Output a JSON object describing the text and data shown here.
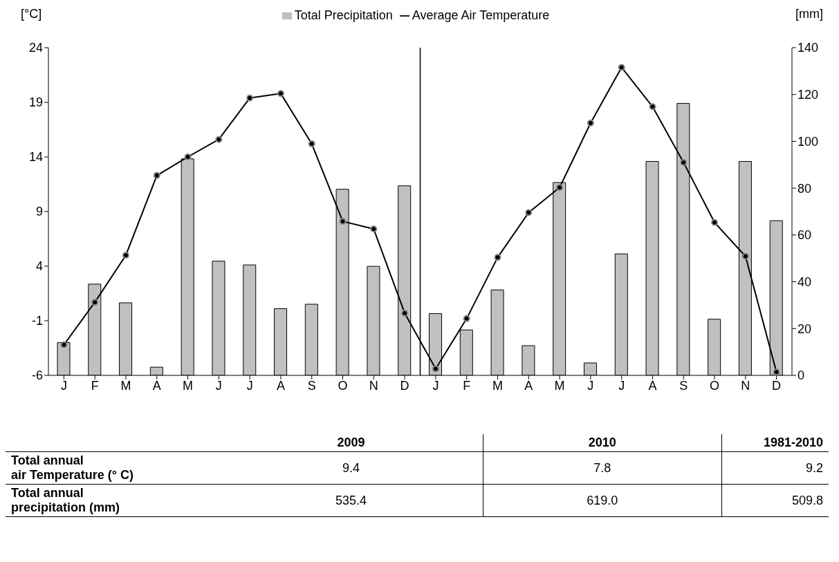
{
  "chart_data": {
    "type": "bar",
    "ylabel": "[°C]",
    "y2label": "[mm]",
    "categories": [
      "J",
      "F",
      "M",
      "A",
      "M",
      "J",
      "J",
      "A",
      "S",
      "O",
      "N",
      "D",
      "J",
      "F",
      "M",
      "A",
      "M",
      "J",
      "J",
      "A",
      "S",
      "O",
      "N",
      "D"
    ],
    "series": [
      {
        "name": "Total Precipitation",
        "axis": "y2",
        "color": "#c0c0c0",
        "values": [
          14,
          39,
          31,
          3.5,
          92.5,
          48.8,
          47.2,
          28.5,
          30.4,
          79.5,
          46.6,
          81,
          26.4,
          19.4,
          36.5,
          12.7,
          82.4,
          5.3,
          51.9,
          91.4,
          116.2,
          24,
          91.4,
          66.1
        ]
      },
      {
        "name": "Average Air Temperature",
        "type": "line",
        "axis": "y",
        "color": "#000000",
        "marker": "circle",
        "values": [
          -3.2,
          0.7,
          5.0,
          12.3,
          14.0,
          15.6,
          19.4,
          19.8,
          15.2,
          8.1,
          7.4,
          -0.3,
          -5.4,
          -0.8,
          4.8,
          8.9,
          11.2,
          17.1,
          22.2,
          18.6,
          13.5,
          8.0,
          4.9,
          -5.7
        ]
      }
    ],
    "ylim": [
      -6,
      24
    ],
    "yticks": [
      -6,
      -1,
      4,
      9,
      14,
      19,
      24
    ],
    "y2lim": [
      0,
      140
    ],
    "y2ticks": [
      0,
      20,
      40,
      60,
      80,
      100,
      120,
      140
    ],
    "grid": false,
    "legend": "top",
    "annotations": [
      "2009",
      "2010",
      "1981-2010",
      "Total annual\nair Temperature (° C)",
      "9.4",
      "7.8",
      "9.2",
      "Total annual\nprecipitation (mm)",
      "535.4",
      "619.0",
      "509.8"
    ]
  }
}
